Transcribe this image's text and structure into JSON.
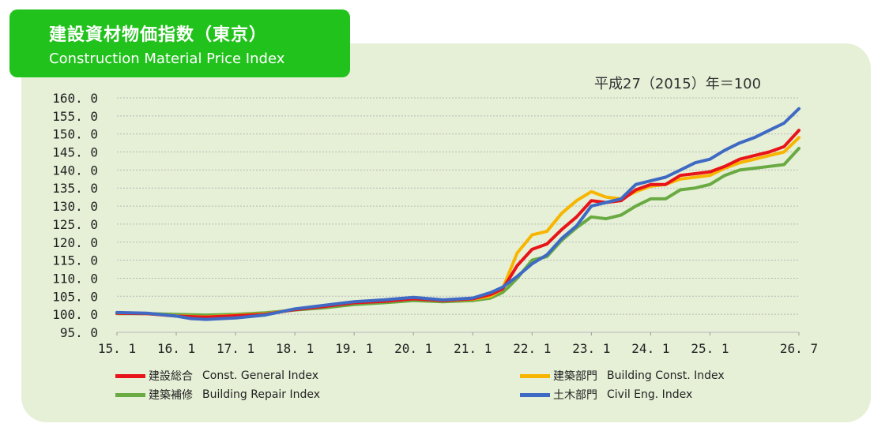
{
  "header": {
    "title_jp": "建設資材物価指数（東京）",
    "title_en": "Construction Material Price Index"
  },
  "note": "平成27（2015）年＝100",
  "chart_data": {
    "type": "line",
    "xlim": [
      2015.0,
      2026.5
    ],
    "ylim": [
      95,
      160
    ],
    "grid": true,
    "x_tick_labels": [
      "15. 1",
      "16. 1",
      "17. 1",
      "18. 1",
      "19. 1",
      "20. 1",
      "21. 1",
      "22. 1",
      "23. 1",
      "24. 1",
      "25. 1",
      "26. 7"
    ],
    "y_tick_labels": [
      "95. 0",
      "100. 0",
      "105. 0",
      "110. 0",
      "115. 0",
      "120. 0",
      "125. 0",
      "130. 0",
      "135. 0",
      "140. 0",
      "145. 0",
      "150. 0",
      "155. 0",
      "160. 0"
    ],
    "legend_position": "bottom",
    "series": [
      {
        "name": "建設総合",
        "name_en": "Const. General  Index",
        "color": "#e8141a",
        "points": [
          [
            2015.0,
            100.3
          ],
          [
            2015.5,
            100.2
          ],
          [
            2016.0,
            99.5
          ],
          [
            2016.5,
            99.2
          ],
          [
            2017.0,
            99.6
          ],
          [
            2017.5,
            100.0
          ],
          [
            2018.0,
            101.3
          ],
          [
            2018.5,
            102.2
          ],
          [
            2019.0,
            103.2
          ],
          [
            2019.5,
            103.6
          ],
          [
            2020.0,
            104.3
          ],
          [
            2020.5,
            103.8
          ],
          [
            2021.0,
            104.3
          ],
          [
            2021.3,
            105.5
          ],
          [
            2021.5,
            107.0
          ],
          [
            2021.6,
            109.5
          ],
          [
            2021.75,
            113.5
          ],
          [
            2022.0,
            118.0
          ],
          [
            2022.25,
            119.5
          ],
          [
            2022.5,
            123.5
          ],
          [
            2022.75,
            127.0
          ],
          [
            2023.0,
            131.5
          ],
          [
            2023.25,
            131.0
          ],
          [
            2023.5,
            131.5
          ],
          [
            2023.75,
            134.5
          ],
          [
            2024.0,
            136.0
          ],
          [
            2024.25,
            136.0
          ],
          [
            2024.5,
            138.5
          ],
          [
            2024.75,
            139.0
          ],
          [
            2025.0,
            139.5
          ],
          [
            2025.25,
            141.0
          ],
          [
            2025.5,
            143.0
          ],
          [
            2025.75,
            144.0
          ],
          [
            2026.0,
            145.0
          ],
          [
            2026.25,
            146.5
          ],
          [
            2026.5,
            151.0
          ]
        ]
      },
      {
        "name": "建築部門",
        "name_en": "Building Const. Index",
        "color": "#f7b500",
        "points": [
          [
            2015.0,
            100.3
          ],
          [
            2015.5,
            100.2
          ],
          [
            2016.0,
            99.6
          ],
          [
            2016.5,
            99.3
          ],
          [
            2017.0,
            99.7
          ],
          [
            2017.5,
            100.1
          ],
          [
            2018.0,
            101.4
          ],
          [
            2018.5,
            102.3
          ],
          [
            2019.0,
            103.3
          ],
          [
            2019.5,
            103.7
          ],
          [
            2020.0,
            104.4
          ],
          [
            2020.5,
            103.8
          ],
          [
            2021.0,
            104.2
          ],
          [
            2021.3,
            105.0
          ],
          [
            2021.5,
            107.0
          ],
          [
            2021.6,
            111.0
          ],
          [
            2021.75,
            117.0
          ],
          [
            2022.0,
            122.0
          ],
          [
            2022.25,
            123.0
          ],
          [
            2022.5,
            128.0
          ],
          [
            2022.75,
            131.5
          ],
          [
            2023.0,
            134.0
          ],
          [
            2023.25,
            132.5
          ],
          [
            2023.5,
            132.0
          ],
          [
            2023.75,
            134.0
          ],
          [
            2024.0,
            135.5
          ],
          [
            2024.25,
            136.0
          ],
          [
            2024.5,
            137.5
          ],
          [
            2024.75,
            138.0
          ],
          [
            2025.0,
            138.5
          ],
          [
            2025.25,
            140.5
          ],
          [
            2025.5,
            142.0
          ],
          [
            2025.75,
            143.0
          ],
          [
            2026.0,
            144.0
          ],
          [
            2026.25,
            145.0
          ],
          [
            2026.5,
            149.0
          ]
        ]
      },
      {
        "name": "建築補修",
        "name_en": "Building Repair Index",
        "color": "#6aaa43",
        "points": [
          [
            2015.0,
            100.2
          ],
          [
            2015.5,
            100.2
          ],
          [
            2016.0,
            100.0
          ],
          [
            2016.5,
            99.8
          ],
          [
            2017.0,
            100.0
          ],
          [
            2017.5,
            100.4
          ],
          [
            2018.0,
            101.2
          ],
          [
            2018.5,
            101.8
          ],
          [
            2019.0,
            102.7
          ],
          [
            2019.5,
            103.2
          ],
          [
            2020.0,
            103.8
          ],
          [
            2020.5,
            103.5
          ],
          [
            2021.0,
            103.8
          ],
          [
            2021.3,
            104.5
          ],
          [
            2021.5,
            106.0
          ],
          [
            2021.6,
            107.5
          ],
          [
            2021.75,
            110.0
          ],
          [
            2022.0,
            115.0
          ],
          [
            2022.25,
            116.0
          ],
          [
            2022.5,
            120.5
          ],
          [
            2022.75,
            124.0
          ],
          [
            2023.0,
            127.0
          ],
          [
            2023.25,
            126.5
          ],
          [
            2023.5,
            127.5
          ],
          [
            2023.75,
            130.0
          ],
          [
            2024.0,
            132.0
          ],
          [
            2024.25,
            132.0
          ],
          [
            2024.5,
            134.5
          ],
          [
            2024.75,
            135.0
          ],
          [
            2025.0,
            136.0
          ],
          [
            2025.25,
            138.5
          ],
          [
            2025.5,
            140.0
          ],
          [
            2025.75,
            140.5
          ],
          [
            2026.0,
            141.0
          ],
          [
            2026.25,
            141.5
          ],
          [
            2026.5,
            146.0
          ]
        ]
      },
      {
        "name": "土木部門",
        "name_en": "Civil Eng. Index",
        "color": "#3f6ac4",
        "points": [
          [
            2015.0,
            100.5
          ],
          [
            2015.5,
            100.3
          ],
          [
            2016.0,
            99.5
          ],
          [
            2016.25,
            98.8
          ],
          [
            2016.5,
            98.6
          ],
          [
            2017.0,
            99.0
          ],
          [
            2017.5,
            99.8
          ],
          [
            2018.0,
            101.5
          ],
          [
            2018.5,
            102.5
          ],
          [
            2019.0,
            103.5
          ],
          [
            2019.5,
            104.0
          ],
          [
            2020.0,
            104.7
          ],
          [
            2020.5,
            104.0
          ],
          [
            2021.0,
            104.5
          ],
          [
            2021.3,
            106.0
          ],
          [
            2021.5,
            107.5
          ],
          [
            2021.75,
            110.5
          ],
          [
            2022.0,
            114.0
          ],
          [
            2022.25,
            116.5
          ],
          [
            2022.5,
            121.0
          ],
          [
            2022.75,
            124.5
          ],
          [
            2023.0,
            130.0
          ],
          [
            2023.25,
            131.0
          ],
          [
            2023.5,
            132.0
          ],
          [
            2023.75,
            136.0
          ],
          [
            2024.0,
            137.0
          ],
          [
            2024.25,
            138.0
          ],
          [
            2024.5,
            140.0
          ],
          [
            2024.75,
            142.0
          ],
          [
            2025.0,
            143.0
          ],
          [
            2025.25,
            145.5
          ],
          [
            2025.5,
            147.5
          ],
          [
            2025.75,
            149.0
          ],
          [
            2026.0,
            151.0
          ],
          [
            2026.25,
            153.0
          ],
          [
            2026.5,
            157.0
          ]
        ]
      }
    ]
  }
}
